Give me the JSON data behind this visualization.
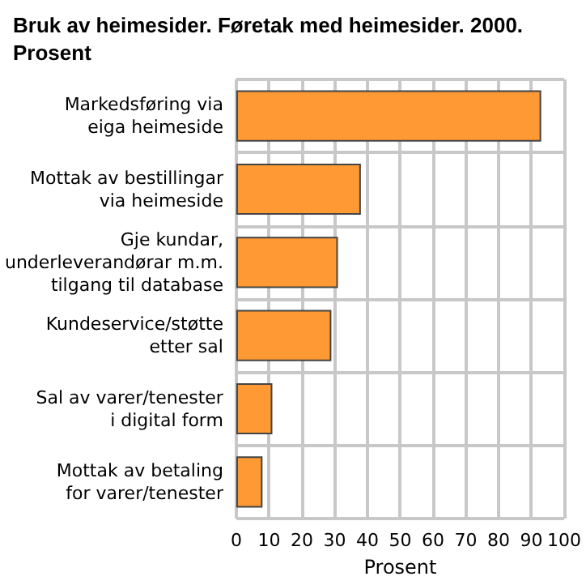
{
  "chart_data": {
    "type": "bar",
    "orientation": "horizontal",
    "title": "Bruk av heimesider. Føretak med heimesider. 2000.\nProsent",
    "xlabel": "Prosent",
    "categories": [
      "Markedsføring via\neiga heimeside",
      "Mottak av bestillingar\nvia heimeside",
      "Gje kundar,\nunderleverandørar m.m.\ntilgang til database",
      "Kundeservice/støtte\netter sal",
      "Sal av varer/tenester\ni digital form",
      "Mottak av betaling\nfor varer/tenester"
    ],
    "values": [
      93,
      38,
      31,
      29,
      11,
      8
    ],
    "color": "#ff9933",
    "xlim": [
      0,
      100
    ],
    "xticks": [
      0,
      10,
      20,
      30,
      40,
      50,
      60,
      70,
      80,
      90,
      100
    ],
    "grid": true
  }
}
